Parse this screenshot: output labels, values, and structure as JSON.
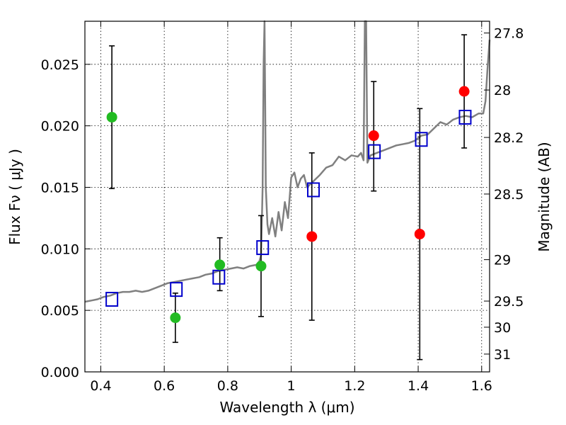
{
  "chart_data": {
    "type": "scatter",
    "xlabel": "Wavelength  λ (μm)",
    "ylabel": "Flux  Fν  ( μJy )",
    "y2label": "Magnitude (AB)",
    "xlim": [
      0.35,
      1.625
    ],
    "ylim": [
      0.0,
      0.0285
    ],
    "grid": true,
    "x_ticks": [
      0.4,
      0.6,
      0.8,
      1.0,
      1.2,
      1.4,
      1.6
    ],
    "x_tick_labels": [
      "0.4",
      "0.6",
      "0.8",
      "1",
      "1.2",
      "1.4",
      "1.6"
    ],
    "y_ticks": [
      0.0,
      0.005,
      0.01,
      0.015,
      0.02,
      0.025
    ],
    "y_tick_labels": [
      "0.000",
      "0.005",
      "0.010",
      "0.015",
      "0.020",
      "0.025"
    ],
    "mag_ticks": [
      27.8,
      28.0,
      28.2,
      28.5,
      29.0,
      29.5,
      30.0,
      31.0
    ],
    "mag_tick_labels": [
      "27.8",
      "28",
      "28.2",
      "28.5",
      "29",
      "29.5",
      "30",
      "31"
    ],
    "colors": {
      "detection": "#22bb22",
      "upper": "#ff0000",
      "model_box": "#0000cc",
      "sed": "#808080",
      "errorbar": "#000000"
    },
    "detections": [
      {
        "x": 0.435,
        "y": 0.0207,
        "err_lo": 0.0149,
        "err_hi": 0.0265
      },
      {
        "x": 0.635,
        "y": 0.0044,
        "err_lo": 0.0024,
        "err_hi": 0.0064
      },
      {
        "x": 0.775,
        "y": 0.0087,
        "err_lo": 0.0066,
        "err_hi": 0.0109
      },
      {
        "x": 0.905,
        "y": 0.0086,
        "err_lo": 0.0045,
        "err_hi": 0.0127
      }
    ],
    "upper_limits": [
      {
        "x": 1.065,
        "y": 0.011,
        "err_lo": 0.0042,
        "err_hi": 0.0178
      },
      {
        "x": 1.26,
        "y": 0.0192,
        "err_lo": 0.0147,
        "err_hi": 0.0236
      },
      {
        "x": 1.405,
        "y": 0.0112,
        "err_lo": 0.001,
        "err_hi": 0.0214
      },
      {
        "x": 1.545,
        "y": 0.0228,
        "err_lo": 0.0182,
        "err_hi": 0.0274
      }
    ],
    "model_photometry": [
      {
        "x": 0.435,
        "y": 0.0059
      },
      {
        "x": 0.638,
        "y": 0.0067
      },
      {
        "x": 0.772,
        "y": 0.0077
      },
      {
        "x": 0.91,
        "y": 0.0101
      },
      {
        "x": 1.07,
        "y": 0.0148
      },
      {
        "x": 1.262,
        "y": 0.0179
      },
      {
        "x": 1.41,
        "y": 0.0189
      },
      {
        "x": 1.548,
        "y": 0.0207
      }
    ],
    "sed_model": [
      [
        0.35,
        0.0057
      ],
      [
        0.37,
        0.0058
      ],
      [
        0.39,
        0.0059
      ],
      [
        0.41,
        0.0061
      ],
      [
        0.43,
        0.0062
      ],
      [
        0.45,
        0.0064
      ],
      [
        0.47,
        0.0065
      ],
      [
        0.49,
        0.0065
      ],
      [
        0.51,
        0.0066
      ],
      [
        0.53,
        0.0065
      ],
      [
        0.55,
        0.0066
      ],
      [
        0.57,
        0.0068
      ],
      [
        0.59,
        0.007
      ],
      [
        0.61,
        0.0072
      ],
      [
        0.63,
        0.0073
      ],
      [
        0.65,
        0.0074
      ],
      [
        0.67,
        0.0075
      ],
      [
        0.69,
        0.0076
      ],
      [
        0.71,
        0.0077
      ],
      [
        0.73,
        0.0079
      ],
      [
        0.75,
        0.008
      ],
      [
        0.77,
        0.0082
      ],
      [
        0.79,
        0.0083
      ],
      [
        0.81,
        0.0084
      ],
      [
        0.83,
        0.0085
      ],
      [
        0.85,
        0.0084
      ],
      [
        0.87,
        0.0086
      ],
      [
        0.89,
        0.0087
      ],
      [
        0.9,
        0.009
      ],
      [
        0.905,
        0.0095
      ],
      [
        0.91,
        0.015
      ],
      [
        0.913,
        0.025
      ],
      [
        0.916,
        0.0285
      ],
      [
        0.918,
        0.022
      ],
      [
        0.92,
        0.015
      ],
      [
        0.925,
        0.012
      ],
      [
        0.93,
        0.0112
      ],
      [
        0.94,
        0.0125
      ],
      [
        0.95,
        0.011
      ],
      [
        0.96,
        0.013
      ],
      [
        0.97,
        0.0115
      ],
      [
        0.98,
        0.0138
      ],
      [
        0.99,
        0.0125
      ],
      [
        1.0,
        0.0158
      ],
      [
        1.01,
        0.0162
      ],
      [
        1.02,
        0.015
      ],
      [
        1.03,
        0.0157
      ],
      [
        1.04,
        0.016
      ],
      [
        1.05,
        0.015
      ],
      [
        1.07,
        0.0155
      ],
      [
        1.09,
        0.016
      ],
      [
        1.11,
        0.0166
      ],
      [
        1.13,
        0.0168
      ],
      [
        1.15,
        0.0175
      ],
      [
        1.17,
        0.0172
      ],
      [
        1.19,
        0.0176
      ],
      [
        1.21,
        0.0175
      ],
      [
        1.22,
        0.0178
      ],
      [
        1.228,
        0.0172
      ],
      [
        1.232,
        0.0285
      ],
      [
        1.236,
        0.0285
      ],
      [
        1.24,
        0.017
      ],
      [
        1.25,
        0.0176
      ],
      [
        1.27,
        0.0178
      ],
      [
        1.29,
        0.018
      ],
      [
        1.31,
        0.0182
      ],
      [
        1.33,
        0.0184
      ],
      [
        1.35,
        0.0185
      ],
      [
        1.37,
        0.0186
      ],
      [
        1.39,
        0.0188
      ],
      [
        1.41,
        0.0192
      ],
      [
        1.43,
        0.0193
      ],
      [
        1.45,
        0.0198
      ],
      [
        1.47,
        0.0203
      ],
      [
        1.49,
        0.0201
      ],
      [
        1.51,
        0.0205
      ],
      [
        1.53,
        0.0207
      ],
      [
        1.55,
        0.0208
      ],
      [
        1.57,
        0.0207
      ],
      [
        1.59,
        0.021
      ],
      [
        1.605,
        0.021
      ],
      [
        1.612,
        0.022
      ],
      [
        1.618,
        0.0245
      ],
      [
        1.625,
        0.027
      ]
    ]
  }
}
